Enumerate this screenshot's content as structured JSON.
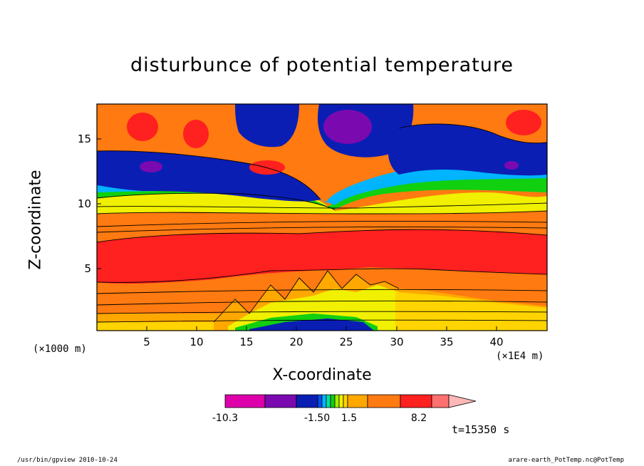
{
  "chart_data": {
    "type": "heatmap",
    "title": "disturbunce of potential temperature",
    "xlabel": "X-coordinate",
    "ylabel": "Z-coordinate",
    "x_unit_left": "(×1000 m)",
    "x_unit_right": "(×1E4 m)",
    "xlim": [
      0,
      45
    ],
    "ylim": [
      0,
      17.5
    ],
    "xticks": [
      5,
      10,
      15,
      20,
      25,
      30,
      35,
      40
    ],
    "yticks": [
      5,
      10,
      15
    ],
    "colorbar": {
      "colors": [
        "#dd00aa",
        "#7a0ab0",
        "#0a1eb4",
        "#0050f0",
        "#00b4ff",
        "#00e0a0",
        "#10d010",
        "#a0f000",
        "#f0f000",
        "#ffd400",
        "#ffa800",
        "#ff7a10",
        "#ff2020",
        "#ff7070",
        "#ffb8b8"
      ],
      "labels": [
        "-10.3",
        "-1.50",
        "1.5",
        "8.2"
      ]
    },
    "time": "t=15350 s"
  },
  "footer": {
    "left": "/usr/bin/gpview   2010-10-24",
    "right": "arare-earth_PotTemp.nc@PotTemp"
  }
}
